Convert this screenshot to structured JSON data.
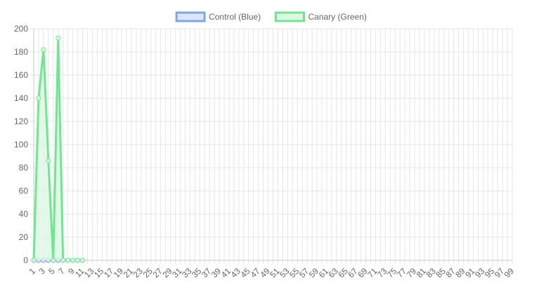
{
  "chart_data": {
    "type": "line",
    "title": "",
    "xlabel": "",
    "ylabel": "",
    "x_tick_labels": [
      "1",
      "3",
      "5",
      "7",
      "9",
      "11",
      "13",
      "15",
      "17",
      "19",
      "21",
      "23",
      "25",
      "27",
      "29",
      "31",
      "33",
      "35",
      "37",
      "39",
      "41",
      "43",
      "45",
      "47",
      "49",
      "51",
      "53",
      "55",
      "57",
      "59",
      "61",
      "63",
      "65",
      "67",
      "69",
      "71",
      "73",
      "75",
      "77",
      "79",
      "81",
      "83",
      "85",
      "87",
      "89",
      "91",
      "93",
      "95",
      "97",
      "99"
    ],
    "x_range": [
      1,
      99
    ],
    "ylim": [
      0,
      200
    ],
    "y_ticks": [
      "0",
      "20",
      "40",
      "60",
      "80",
      "100",
      "120",
      "140",
      "160",
      "180",
      "200"
    ],
    "grid": true,
    "legend_position": "top",
    "series": [
      {
        "name": "Control (Blue)",
        "color": "#7ea6e8",
        "fill": "#dbe6fa",
        "x": [
          1,
          2,
          3,
          4,
          5,
          6,
          7,
          8,
          9,
          10,
          11
        ],
        "values": [
          0,
          0,
          0,
          0,
          0,
          0,
          0,
          0,
          0,
          0,
          0
        ]
      },
      {
        "name": "Canary (Green)",
        "color": "#6ee88e",
        "fill": "#dcf7e3",
        "x": [
          1,
          2,
          3,
          4,
          5,
          6,
          7,
          8,
          9,
          10,
          11
        ],
        "values": [
          0,
          140,
          182,
          86,
          0,
          192,
          0,
          0,
          0,
          0,
          0
        ]
      }
    ]
  }
}
